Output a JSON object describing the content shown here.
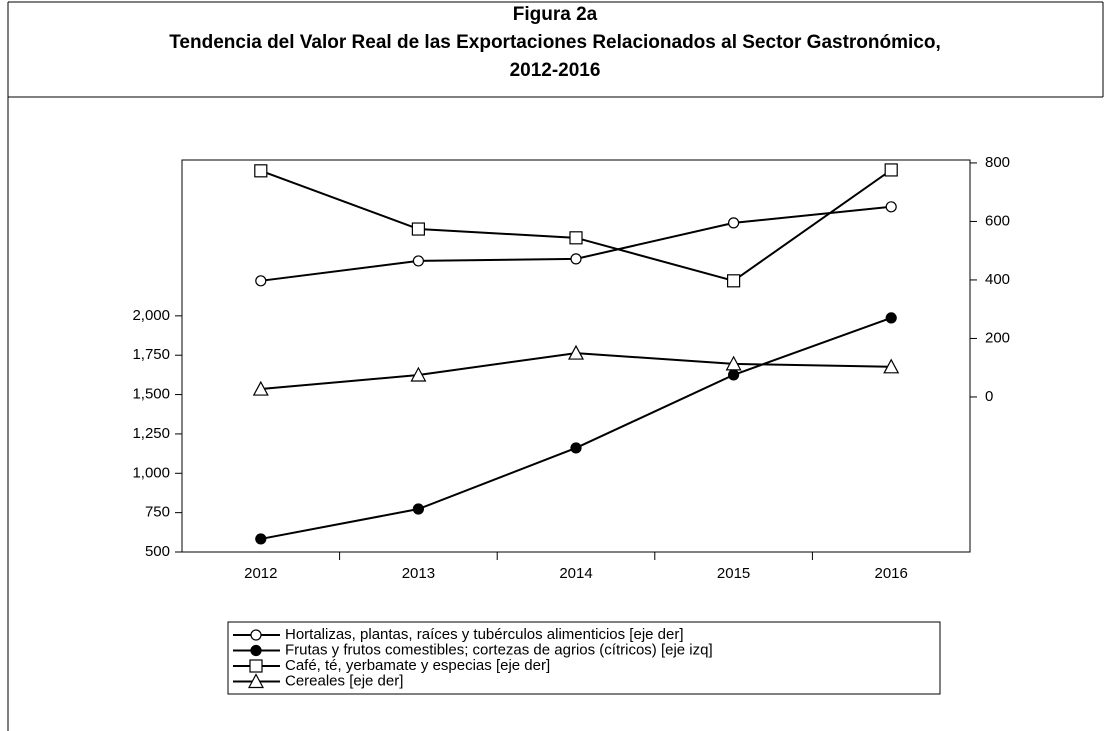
{
  "chart_data": {
    "type": "line",
    "title": [
      "Figura 2a",
      "Tendencia del Valor Real de las Exportaciones Relacionados al Sector Gastronómico,",
      "2012-2016"
    ],
    "categories": [
      "2012",
      "2013",
      "2014",
      "2015",
      "2016"
    ],
    "series": [
      {
        "name": "Hortalizas, plantas, raíces y tubérculos alimenticios [eje der]",
        "color": "#000000",
        "marker": "circle-open",
        "axis": "y2",
        "values": [
          397,
          465,
          472,
          595,
          650
        ]
      },
      {
        "name": "Frutas y frutos comestibles; cortezas de agrios (cítricos) [eje izq]",
        "color": "#000000",
        "marker": "circle-filled",
        "values": [
          583,
          773,
          1161,
          1625,
          1987
        ]
      },
      {
        "name": "Café, té, yerbamate y especias [eje der]",
        "color": "#000000",
        "marker": "square-open",
        "axis": "y2",
        "values": [
          773,
          574,
          544,
          397,
          776
        ]
      },
      {
        "name": "Cereales [eje der]",
        "color": "#000000",
        "marker": "triangle-open",
        "axis": "y2",
        "values": [
          27,
          75,
          150,
          113,
          103
        ]
      }
    ],
    "ylim": [
      500,
      2990
    ],
    "yticks": [
      500,
      750,
      {
        "value": 1000,
        "label": "1,000"
      },
      {
        "value": 1250,
        "label": "1,250"
      },
      {
        "value": 1500,
        "label": "1,500"
      },
      {
        "value": 1750,
        "label": "1,750"
      },
      {
        "value": 2000,
        "label": "2,000"
      }
    ],
    "y2lim": [
      -530,
      810
    ],
    "y2ticks": [
      0,
      200,
      400,
      600,
      800
    ],
    "grid": false
  }
}
